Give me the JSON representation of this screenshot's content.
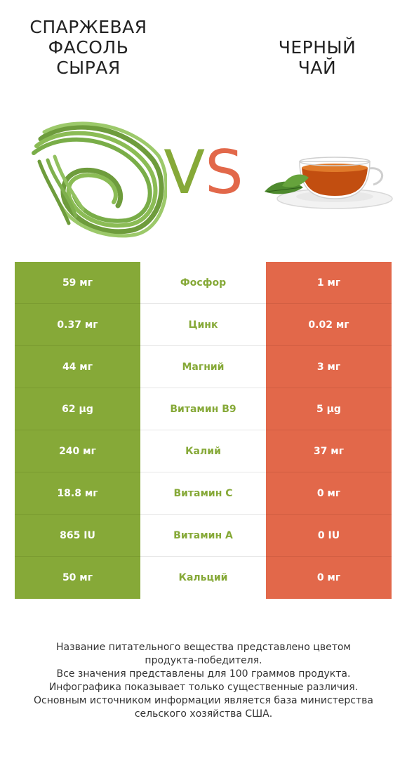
{
  "left_product": {
    "title_lines": [
      "СПАРЖЕВАЯ",
      "ФАСОЛЬ",
      "СЫРАЯ"
    ],
    "color": "#86a938"
  },
  "right_product": {
    "title_lines": [
      "ЧЕРНЫЙ",
      "ЧАЙ"
    ],
    "color": "#e2684a"
  },
  "vs": {
    "v": "V",
    "s": "S"
  },
  "rows": [
    {
      "left": "59 мг",
      "name": "Фосфор",
      "right": "1 мг"
    },
    {
      "left": "0.37 мг",
      "name": "Цинк",
      "right": "0.02 мг"
    },
    {
      "left": "44 мг",
      "name": "Магний",
      "right": "3 мг"
    },
    {
      "left": "62 µg",
      "name": "Витамин B9",
      "right": "5 µg"
    },
    {
      "left": "240 мг",
      "name": "Калий",
      "right": "37 мг"
    },
    {
      "left": "18.8 мг",
      "name": "Витамин C",
      "right": "0 мг"
    },
    {
      "left": "865 IU",
      "name": "Витамин A",
      "right": "0 IU"
    },
    {
      "left": "50 мг",
      "name": "Кальций",
      "right": "0 мг"
    }
  ],
  "footer": [
    "Название питательного вещества представлено цветом",
    "продукта-победителя.",
    "Все значения представлены для 100 граммов продукта.",
    "Инфографика показывает только существенные различия.",
    "Основным источником информации является база министерства",
    "сельского хозяйства США."
  ]
}
